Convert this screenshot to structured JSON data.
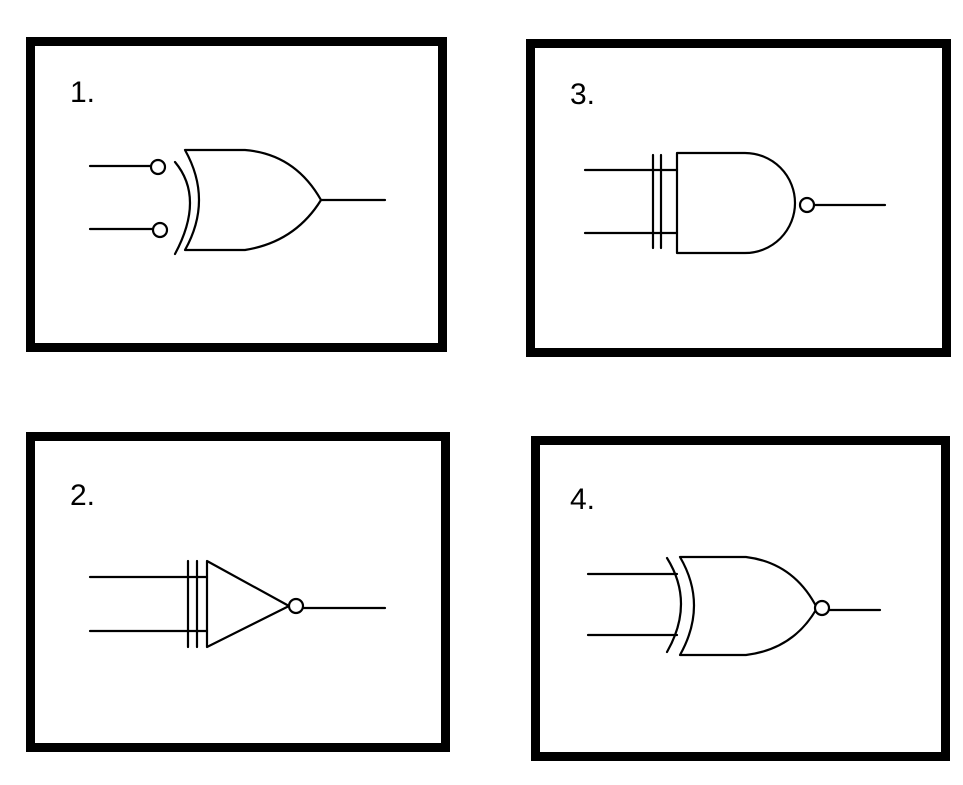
{
  "panels": [
    {
      "label": "1.",
      "gate": "xor-inverted-inputs"
    },
    {
      "label": "2.",
      "gate": "inverter-with-bar"
    },
    {
      "label": "3.",
      "gate": "nand-with-bar"
    },
    {
      "label": "4.",
      "gate": "xnor"
    }
  ]
}
